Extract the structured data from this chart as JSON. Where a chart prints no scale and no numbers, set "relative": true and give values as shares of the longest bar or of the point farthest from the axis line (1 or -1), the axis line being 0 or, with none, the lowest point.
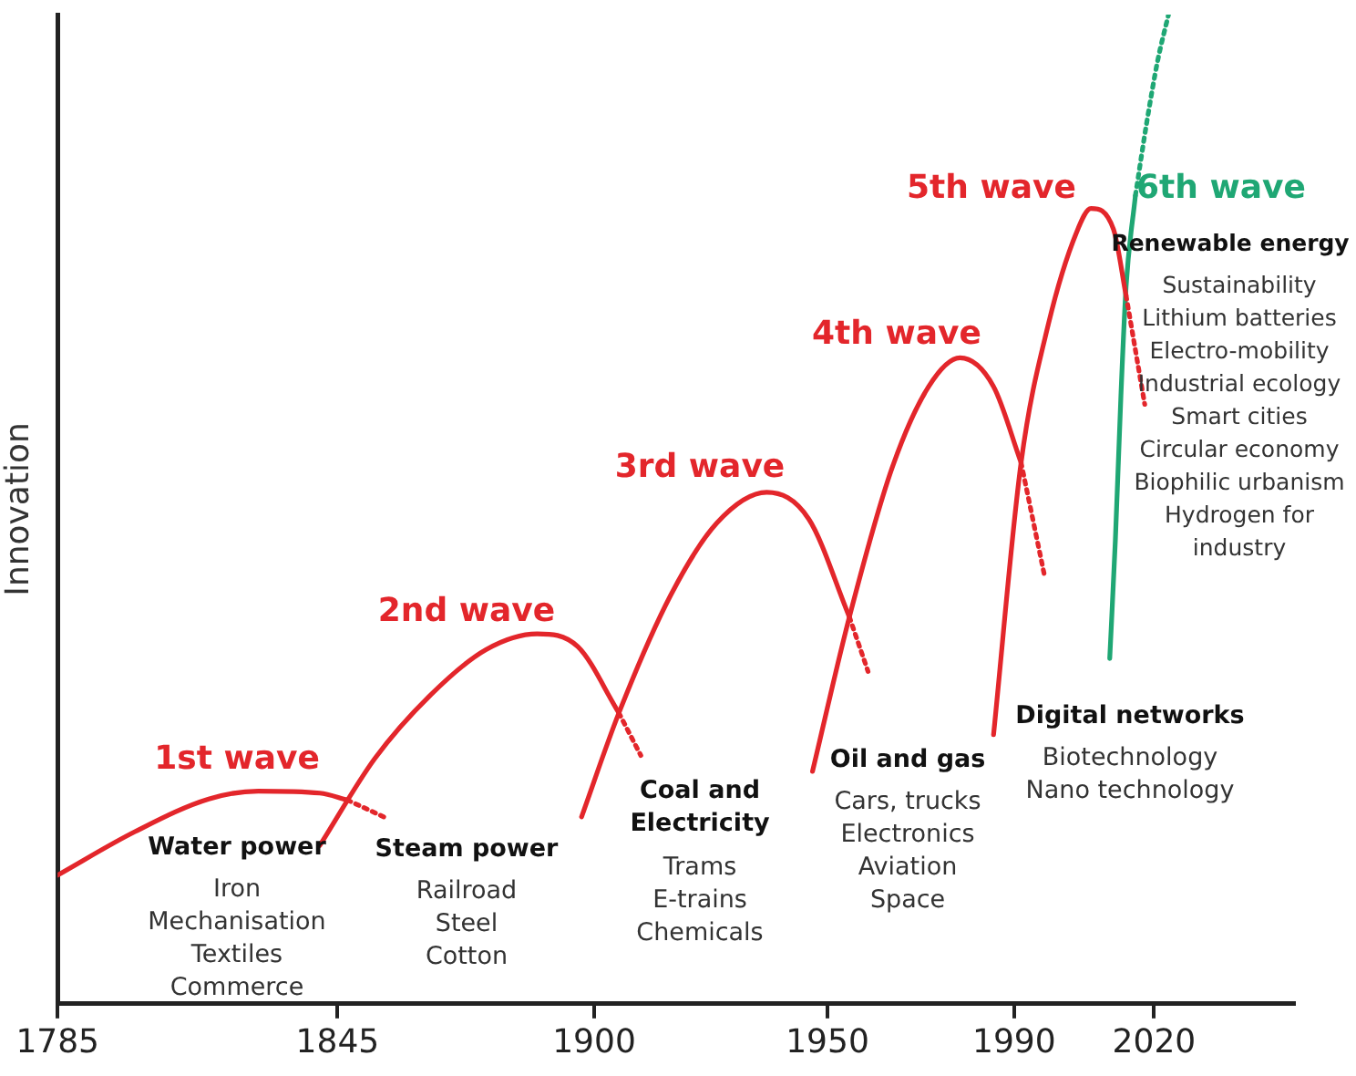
{
  "chart_data": {
    "type": "line",
    "relative": true,
    "ylabel": "Innovation",
    "xlim": [
      1785,
      2050
    ],
    "xticks": [
      1785,
      1845,
      1900,
      1950,
      1990,
      2020
    ],
    "grid": false,
    "legend": false,
    "marker": "none",
    "series": [
      {
        "color": "#e3262b",
        "line_style": "solid",
        "x": [
          1785,
          1801.6,
          1817.4,
          1828,
          1841.2,
          1847.1
        ],
        "values": [
          0.13,
          0.174,
          0.207,
          0.215,
          0.213,
          0.206
        ]
      },
      {
        "color": "#e3262b",
        "line_style": "dotted",
        "x": [
          1847.1,
          1855.8
        ],
        "values": [
          0.206,
          0.187
        ]
      },
      {
        "color": "#e3262b",
        "line_style": "solid",
        "x": [
          1841.2,
          1853,
          1864.9,
          1876.8,
          1887.8,
          1896.5,
          1905.3
        ],
        "values": [
          0.16,
          0.248,
          0.312,
          0.358,
          0.374,
          0.361,
          0.294
        ]
      },
      {
        "color": "#e3262b",
        "line_style": "dotted",
        "x": [
          1905.3,
          1910
        ],
        "values": [
          0.294,
          0.251
        ]
      },
      {
        "color": "#e3262b",
        "line_style": "solid",
        "x": [
          1897.3,
          1905.3,
          1916.4,
          1926.3,
          1937,
          1946,
          1954.7
        ],
        "values": [
          0.189,
          0.294,
          0.413,
          0.486,
          0.517,
          0.49,
          0.391
        ]
      },
      {
        "color": "#e3262b",
        "line_style": "dotted",
        "x": [
          1954.7,
          1958.7
        ],
        "values": [
          0.391,
          0.336
        ]
      },
      {
        "color": "#e3262b",
        "line_style": "solid",
        "x": [
          1946.8,
          1954.7,
          1963.8,
          1971.7,
          1978.4,
          1985.6,
          1991.5
        ],
        "values": [
          0.235,
          0.391,
          0.541,
          0.624,
          0.653,
          0.624,
          0.547
        ]
      },
      {
        "color": "#e3262b",
        "line_style": "dotted",
        "x": [
          1991.5,
          1996.6
        ],
        "values": [
          0.547,
          0.431
        ]
      },
      {
        "color": "#e3262b",
        "line_style": "solid",
        "x": [
          1985.6,
          1991.5,
          1997.4,
          2003.4,
          2006.5,
          2011.3,
          2014
        ],
        "values": [
          0.272,
          0.547,
          0.688,
          0.78,
          0.804,
          0.783,
          0.716
        ]
      },
      {
        "color": "#e3262b",
        "line_style": "dotted",
        "x": [
          2014,
          2018
        ],
        "values": [
          0.716,
          0.606
        ]
      },
      {
        "color": "#1fa774",
        "line_style": "solid",
        "x": [
          2010.5,
          2011.7,
          2012.9,
          2014,
          2016
        ],
        "values": [
          0.349,
          0.468,
          0.615,
          0.725,
          0.817
        ]
      },
      {
        "color": "#1fa774",
        "line_style": "dotted",
        "x": [
          2016,
          2018.4,
          2020.8,
          2023.1
        ],
        "values": [
          0.817,
          0.89,
          0.954,
          1
        ]
      }
    ],
    "annotations": [
      "1st wave",
      "Water power",
      "Iron\nMechanisation\nTextiles\nCommerce",
      "2nd wave",
      "Steam power",
      "Railroad\nSteel\nCotton",
      "3rd wave",
      "Coal and\nElectricity",
      "Trams\nE-trains\nChemicals",
      "4th wave",
      "Oil and gas",
      "Cars, trucks\nElectronics\nAviation\nSpace",
      "5th wave",
      "Digital networks",
      "Biotechnology\nNano technology",
      "6th wave",
      "Renewable energy",
      "Sustainability\nLithium batteries\nElectro-mobility\nIndustrial ecology\nSmart cities\nCircular economy\nBiophilic urbanism\nHydrogen for\nindustry"
    ]
  }
}
